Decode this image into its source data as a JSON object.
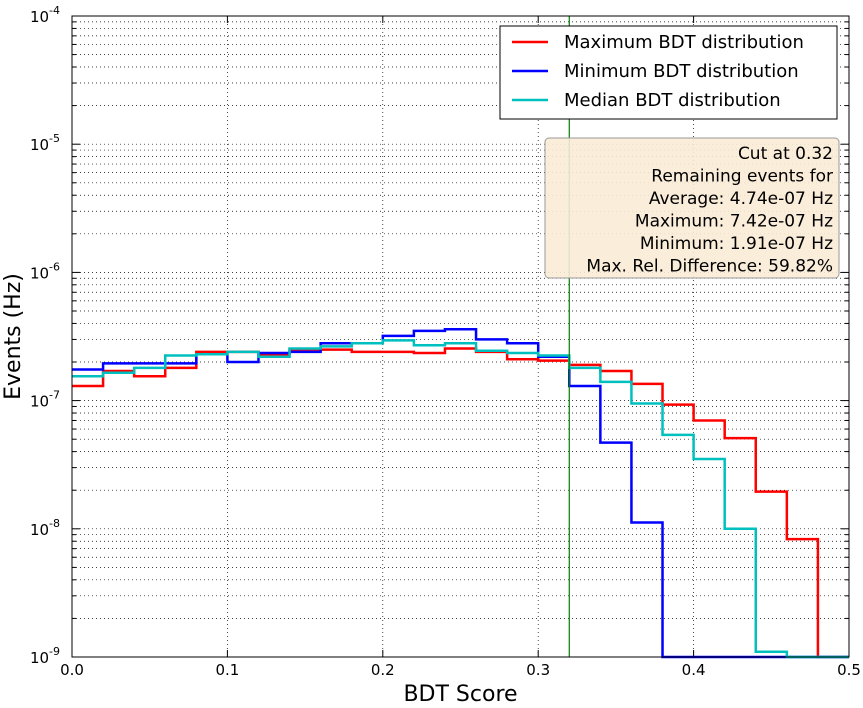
{
  "chart_data": {
    "type": "line",
    "drawstyle": "steps",
    "title": "",
    "xlabel": "BDT Score",
    "ylabel": "Events (Hz)",
    "xlim": [
      0.0,
      0.5
    ],
    "ylim": [
      1e-09,
      0.0001
    ],
    "yscale": "log",
    "grid": true,
    "legend_position": "top-right",
    "x_ticks": [
      0.0,
      0.1,
      0.2,
      0.3,
      0.4,
      0.5
    ],
    "x_tick_labels": [
      "0.0",
      "0.1",
      "0.2",
      "0.3",
      "0.4",
      "0.5"
    ],
    "y_ticks": [
      1e-09,
      1e-08,
      1e-07,
      1e-06,
      1e-05,
      0.0001
    ],
    "y_tick_labels": [
      {
        "base": "10",
        "exp": "-9"
      },
      {
        "base": "10",
        "exp": "-8"
      },
      {
        "base": "10",
        "exp": "-7"
      },
      {
        "base": "10",
        "exp": "-6"
      },
      {
        "base": "10",
        "exp": "-5"
      },
      {
        "base": "10",
        "exp": "-4"
      }
    ],
    "bin_edges": [
      0.0,
      0.02,
      0.04,
      0.06,
      0.08,
      0.1,
      0.12,
      0.14,
      0.16,
      0.18,
      0.2,
      0.22,
      0.24,
      0.26,
      0.28,
      0.3,
      0.32,
      0.34,
      0.36,
      0.38,
      0.4,
      0.42,
      0.44,
      0.46,
      0.48,
      0.5
    ],
    "series": [
      {
        "name": "Maximum BDT distribution",
        "color": "#ff0000",
        "values": [
          1.3e-07,
          1.7e-07,
          1.55e-07,
          1.8e-07,
          2.4e-07,
          2.4e-07,
          2.3e-07,
          2.5e-07,
          2.5e-07,
          2.4e-07,
          2.4e-07,
          2.35e-07,
          2.55e-07,
          2.4e-07,
          2.1e-07,
          2.05e-07,
          1.9e-07,
          1.7e-07,
          1.35e-07,
          9.3e-08,
          7e-08,
          5.1e-08,
          1.95e-08,
          8.3e-09,
          1e-09
        ]
      },
      {
        "name": "Minimum BDT distribution",
        "color": "#0000ff",
        "values": [
          1.75e-07,
          1.95e-07,
          1.95e-07,
          1.95e-07,
          2.3e-07,
          2e-07,
          2.35e-07,
          2.4e-07,
          2.8e-07,
          2.8e-07,
          3.2e-07,
          3.5e-07,
          3.6e-07,
          3e-07,
          2.8e-07,
          2.2e-07,
          1.3e-07,
          4.7e-08,
          1.12e-08,
          1e-09,
          1e-09,
          1e-09,
          1e-09,
          1e-09,
          1e-09
        ]
      },
      {
        "name": "Median BDT distribution",
        "color": "#00bfbf",
        "values": [
          1.55e-07,
          1.65e-07,
          1.8e-07,
          2.25e-07,
          2.3e-07,
          2.4e-07,
          2.2e-07,
          2.55e-07,
          2.65e-07,
          2.8e-07,
          2.95e-07,
          2.7e-07,
          2.8e-07,
          2.45e-07,
          2.35e-07,
          2.25e-07,
          1.8e-07,
          1.4e-07,
          9.5e-08,
          5.4e-08,
          3.5e-08,
          1e-08,
          1.1e-09,
          1e-09,
          1e-09
        ]
      }
    ],
    "cut_line": {
      "x": 0.32,
      "color": "#008000"
    },
    "info_box": {
      "background": "#f9ebd6",
      "lines": [
        "Cut at 0.32",
        "Remaining events for",
        "Average: 4.74e-07 Hz",
        "Maximum: 7.42e-07 Hz",
        "Minimum: 1.91e-07 Hz",
        "Max. Rel. Difference: 59.82%"
      ]
    }
  }
}
